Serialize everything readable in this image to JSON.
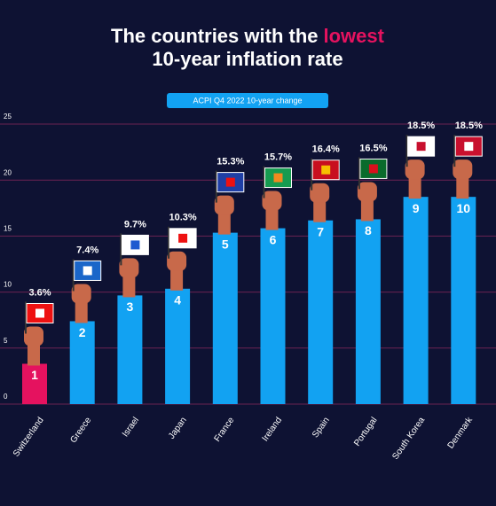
{
  "chart_data": {
    "type": "bar",
    "title": "The countries with the",
    "title_highlight": "lowest",
    "title_line2": "10-year inflation rate",
    "legend": "ACPI Q4 2022 10-year change",
    "categories": [
      "Switzerland",
      "Greece",
      "Israel",
      "Japan",
      "France",
      "Ireland",
      "Spain",
      "Portugal",
      "South Korea",
      "Denmark"
    ],
    "ranks": [
      "1",
      "2",
      "3",
      "4",
      "5",
      "6",
      "7",
      "8",
      "9",
      "10"
    ],
    "values": [
      3.6,
      7.4,
      9.7,
      10.3,
      15.3,
      15.7,
      16.4,
      16.5,
      18.5,
      18.5
    ],
    "value_labels": [
      "3.6%",
      "7.4%",
      "9.7%",
      "10.3%",
      "15.3%",
      "15.7%",
      "16.4%",
      "16.5%",
      "18.5%",
      "18.5%"
    ],
    "colors": [
      "#e5125f",
      "#12a2f2",
      "#12a2f2",
      "#12a2f2",
      "#12a2f2",
      "#12a2f2",
      "#12a2f2",
      "#12a2f2",
      "#12a2f2",
      "#12a2f2"
    ],
    "ylim": [
      0,
      25
    ],
    "yticks": [
      0,
      5,
      10,
      15,
      20,
      25
    ],
    "grid": true
  }
}
